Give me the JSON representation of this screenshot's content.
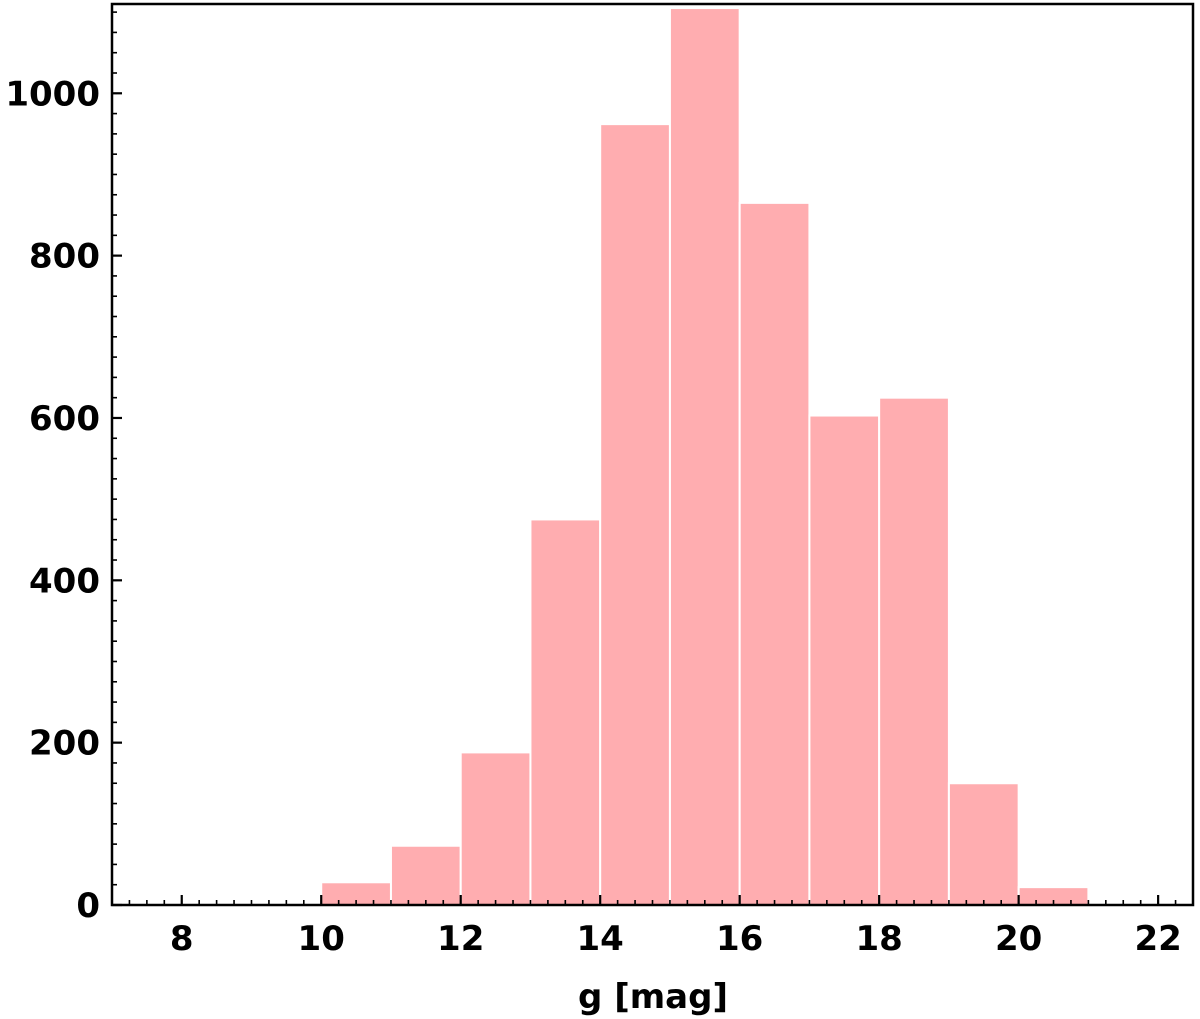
{
  "chart_data": {
    "type": "bar",
    "title": "",
    "xlabel": "g [mag]",
    "ylabel": "",
    "xlim": [
      7,
      22.5
    ],
    "ylim": [
      0,
      1110
    ],
    "x_ticks": [
      8,
      10,
      12,
      14,
      16,
      18,
      20,
      22
    ],
    "y_ticks": [
      0,
      200,
      400,
      600,
      800,
      1000
    ],
    "x_minor_step": 0.25,
    "y_minor_step": 25,
    "bar_color": "#ffadb0",
    "bar_edge_color": "#ffffff",
    "bins": [
      {
        "x0": 8,
        "x1": 9,
        "value": 1
      },
      {
        "x0": 9,
        "x1": 10,
        "value": 2
      },
      {
        "x0": 10,
        "x1": 11,
        "value": 28
      },
      {
        "x0": 11,
        "x1": 12,
        "value": 73
      },
      {
        "x0": 12,
        "x1": 13,
        "value": 188
      },
      {
        "x0": 13,
        "x1": 14,
        "value": 475
      },
      {
        "x0": 14,
        "x1": 15,
        "value": 962
      },
      {
        "x0": 15,
        "x1": 16,
        "value": 1105
      },
      {
        "x0": 16,
        "x1": 17,
        "value": 865
      },
      {
        "x0": 17,
        "x1": 18,
        "value": 603
      },
      {
        "x0": 18,
        "x1": 19,
        "value": 625
      },
      {
        "x0": 19,
        "x1": 20,
        "value": 150
      },
      {
        "x0": 20,
        "x1": 21,
        "value": 22
      }
    ]
  }
}
